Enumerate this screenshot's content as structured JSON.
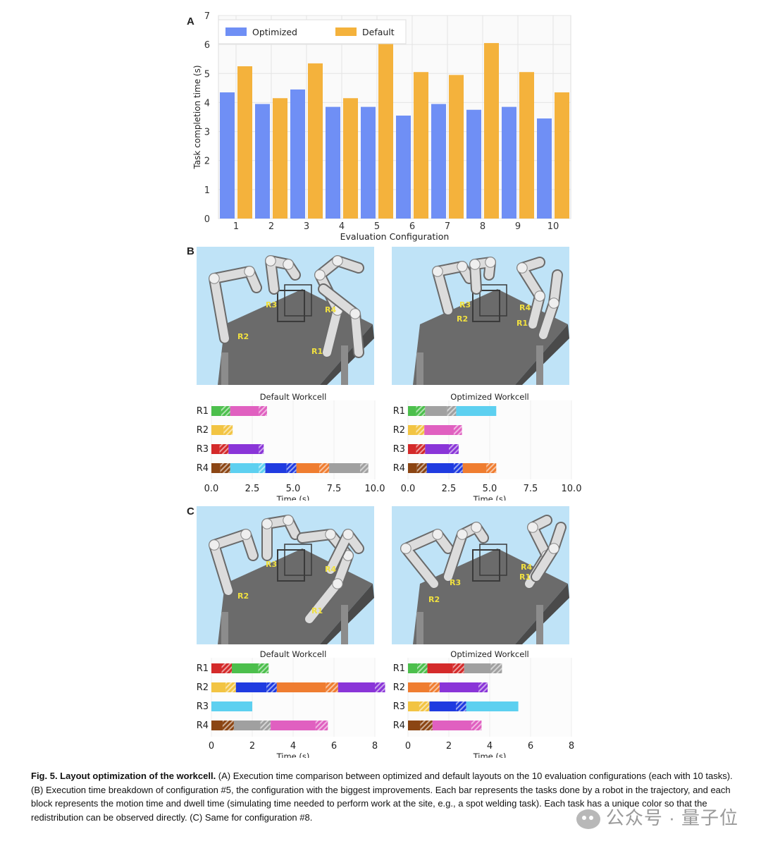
{
  "panels": {
    "a": "A",
    "b": "B",
    "c": "C"
  },
  "chart_data": [
    {
      "type": "bar",
      "title": "",
      "xlabel": "Evaluation Configuration",
      "ylabel": "Task completion time (s)",
      "categories": [
        "1",
        "2",
        "3",
        "4",
        "5",
        "6",
        "7",
        "8",
        "9",
        "10"
      ],
      "ylim": [
        0,
        7
      ],
      "yticks": [
        0,
        1,
        2,
        3,
        4,
        5,
        6,
        7
      ],
      "legend": "top-left",
      "grid": true,
      "series": [
        {
          "name": "Optimized",
          "color": "#6f8ff5",
          "values": [
            4.35,
            3.95,
            4.45,
            3.85,
            3.85,
            3.55,
            3.95,
            3.75,
            3.85,
            3.45
          ]
        },
        {
          "name": "Default",
          "color": "#f4b23c",
          "values": [
            5.25,
            4.15,
            5.35,
            4.15,
            6.15,
            5.05,
            4.95,
            6.05,
            5.05,
            4.35
          ]
        }
      ]
    }
  ],
  "sims": {
    "b_default": {
      "labels": [
        "R3",
        "R4",
        "R2",
        "R1"
      ]
    },
    "b_optimized": {
      "labels": [
        "R3",
        "R4",
        "R2",
        "R1"
      ]
    },
    "c_default": {
      "labels": [
        "R3",
        "R4",
        "R2",
        "R1"
      ]
    },
    "c_optimized": {
      "labels": [
        "R4",
        "R1",
        "R3",
        "R2"
      ]
    }
  },
  "gantt_b": {
    "xlabel": "Time (s)",
    "xmax": 10,
    "xticks": [
      "0.0",
      "2.5",
      "5.0",
      "7.5",
      "10.0"
    ],
    "xtick_values": [
      0,
      2.5,
      5,
      7.5,
      10
    ],
    "default": {
      "title": "Default Workcell",
      "rows": [
        {
          "label": "R1",
          "blocks": [
            [
              "#4cbf4c",
              0,
              0.6
            ],
            [
              "#4cbf4c",
              0.6,
              1.15,
              1
            ],
            [
              "#e060c0",
              1.15,
              2.9
            ],
            [
              "#e060c0",
              2.9,
              3.4,
              1
            ]
          ]
        },
        {
          "label": "R2",
          "blocks": [
            [
              "#f2c443",
              0,
              0.75
            ],
            [
              "#f2c443",
              0.75,
              1.3,
              1
            ]
          ]
        },
        {
          "label": "R3",
          "blocks": [
            [
              "#d42a2a",
              0,
              0.5
            ],
            [
              "#d42a2a",
              0.5,
              1.05,
              1
            ],
            [
              "#8a35d8",
              1.05,
              2.9
            ],
            [
              "#8a35d8",
              2.9,
              3.2,
              1
            ]
          ]
        },
        {
          "label": "R4",
          "blocks": [
            [
              "#8b4513",
              0,
              0.55
            ],
            [
              "#8b4513",
              0.55,
              1.15,
              1
            ],
            [
              "#5dd0f0",
              1.15,
              2.9
            ],
            [
              "#5dd0f0",
              2.9,
              3.3,
              1
            ],
            [
              "#1f3be0",
              3.3,
              4.6
            ],
            [
              "#1f3be0",
              4.6,
              5.2,
              1
            ],
            [
              "#ef7d30",
              5.2,
              6.6
            ],
            [
              "#ef7d30",
              6.6,
              7.2,
              1
            ],
            [
              "#a0a0a0",
              7.2,
              9.1
            ],
            [
              "#a0a0a0",
              9.1,
              9.6,
              1
            ]
          ]
        }
      ]
    },
    "optimized": {
      "title": "Optimized Workcell",
      "rows": [
        {
          "label": "R1",
          "blocks": [
            [
              "#4cbf4c",
              0,
              0.5
            ],
            [
              "#4cbf4c",
              0.5,
              1.05,
              1
            ],
            [
              "#a0a0a0",
              1.05,
              2.4
            ],
            [
              "#a0a0a0",
              2.4,
              2.95,
              1
            ],
            [
              "#5dd0f0",
              2.95,
              5.4
            ]
          ]
        },
        {
          "label": "R2",
          "blocks": [
            [
              "#f2c443",
              0,
              0.5
            ],
            [
              "#f2c443",
              0.5,
              1.0,
              1
            ],
            [
              "#e060c0",
              1.0,
              2.8
            ],
            [
              "#e060c0",
              2.8,
              3.3,
              1
            ]
          ]
        },
        {
          "label": "R3",
          "blocks": [
            [
              "#d42a2a",
              0,
              0.5
            ],
            [
              "#d42a2a",
              0.5,
              1.05,
              1
            ],
            [
              "#8a35d8",
              1.05,
              2.5
            ],
            [
              "#8a35d8",
              2.5,
              3.1,
              1
            ]
          ]
        },
        {
          "label": "R4",
          "blocks": [
            [
              "#8b4513",
              0,
              0.55
            ],
            [
              "#8b4513",
              0.55,
              1.15,
              1
            ],
            [
              "#1f3be0",
              1.15,
              2.8
            ],
            [
              "#1f3be0",
              2.8,
              3.35,
              1
            ],
            [
              "#ef7d30",
              3.35,
              4.8
            ],
            [
              "#ef7d30",
              4.8,
              5.4,
              1
            ]
          ]
        }
      ]
    }
  },
  "gantt_c": {
    "xlabel": "Time (s)",
    "xmax": 8,
    "xticks": [
      "0",
      "2",
      "4",
      "6",
      "8"
    ],
    "xtick_values": [
      0,
      2,
      4,
      6,
      8
    ],
    "default": {
      "title": "Default Workcell",
      "rows": [
        {
          "label": "R1",
          "blocks": [
            [
              "#d42a2a",
              0,
              0.5
            ],
            [
              "#d42a2a",
              0.5,
              1.0,
              1
            ],
            [
              "#4cbf4c",
              1.0,
              2.3
            ],
            [
              "#4cbf4c",
              2.3,
              2.8,
              1
            ]
          ]
        },
        {
          "label": "R2",
          "blocks": [
            [
              "#f2c443",
              0,
              0.7
            ],
            [
              "#f2c443",
              0.7,
              1.2,
              1
            ],
            [
              "#1f3be0",
              1.2,
              2.7
            ],
            [
              "#1f3be0",
              2.7,
              3.2,
              1
            ],
            [
              "#ef7d30",
              3.2,
              5.6
            ],
            [
              "#ef7d30",
              5.6,
              6.2,
              1
            ],
            [
              "#8a35d8",
              6.2,
              8.0
            ],
            [
              "#8a35d8",
              8.0,
              8.5,
              1
            ]
          ]
        },
        {
          "label": "R3",
          "blocks": [
            [
              "#5dd0f0",
              0,
              2.0
            ]
          ]
        },
        {
          "label": "R4",
          "blocks": [
            [
              "#8b4513",
              0,
              0.55
            ],
            [
              "#8b4513",
              0.55,
              1.1,
              1
            ],
            [
              "#a0a0a0",
              1.1,
              2.4
            ],
            [
              "#a0a0a0",
              2.4,
              2.9,
              1
            ],
            [
              "#e060c0",
              2.9,
              5.1
            ],
            [
              "#e060c0",
              5.1,
              5.7,
              1
            ]
          ]
        }
      ]
    },
    "optimized": {
      "title": "Optimized Workcell",
      "rows": [
        {
          "label": "R1",
          "blocks": [
            [
              "#4cbf4c",
              0,
              0.45
            ],
            [
              "#4cbf4c",
              0.45,
              0.95,
              1
            ],
            [
              "#d42a2a",
              0.95,
              2.2
            ],
            [
              "#d42a2a",
              2.2,
              2.75,
              1
            ],
            [
              "#a0a0a0",
              2.75,
              4.05
            ],
            [
              "#a0a0a0",
              4.05,
              4.6,
              1
            ]
          ]
        },
        {
          "label": "R2",
          "blocks": [
            [
              "#ef7d30",
              0,
              1.05
            ],
            [
              "#ef7d30",
              1.05,
              1.55,
              1
            ],
            [
              "#8a35d8",
              1.55,
              3.45
            ],
            [
              "#8a35d8",
              3.45,
              3.9,
              1
            ]
          ]
        },
        {
          "label": "R3",
          "blocks": [
            [
              "#f2c443",
              0,
              0.55
            ],
            [
              "#f2c443",
              0.55,
              1.05,
              1
            ],
            [
              "#1f3be0",
              1.05,
              2.35
            ],
            [
              "#1f3be0",
              2.35,
              2.85,
              1
            ],
            [
              "#5dd0f0",
              2.85,
              5.4
            ]
          ]
        },
        {
          "label": "R4",
          "blocks": [
            [
              "#8b4513",
              0,
              0.6
            ],
            [
              "#8b4513",
              0.6,
              1.2,
              1
            ],
            [
              "#e060c0",
              1.2,
              3.1
            ],
            [
              "#e060c0",
              3.1,
              3.6,
              1
            ]
          ]
        }
      ]
    }
  },
  "caption": {
    "title": "Fig. 5. Layout optimization of the workcell.",
    "body": " (A) Execution time comparison between optimized and default layouts on the 10 evaluation configurations (each with 10 tasks). (B) Execution time breakdown of configuration #5, the configuration with the biggest improvements. Each bar represents the tasks done by a robot in the trajectory, and each block represents the motion time and dwell time (simulating time needed to perform work at the site, e.g., a spot welding task). Each task has a unique color so that the redistribution can be observed directly. (C) Same for configuration #8."
  },
  "watermark": "公众号 · 量子位"
}
